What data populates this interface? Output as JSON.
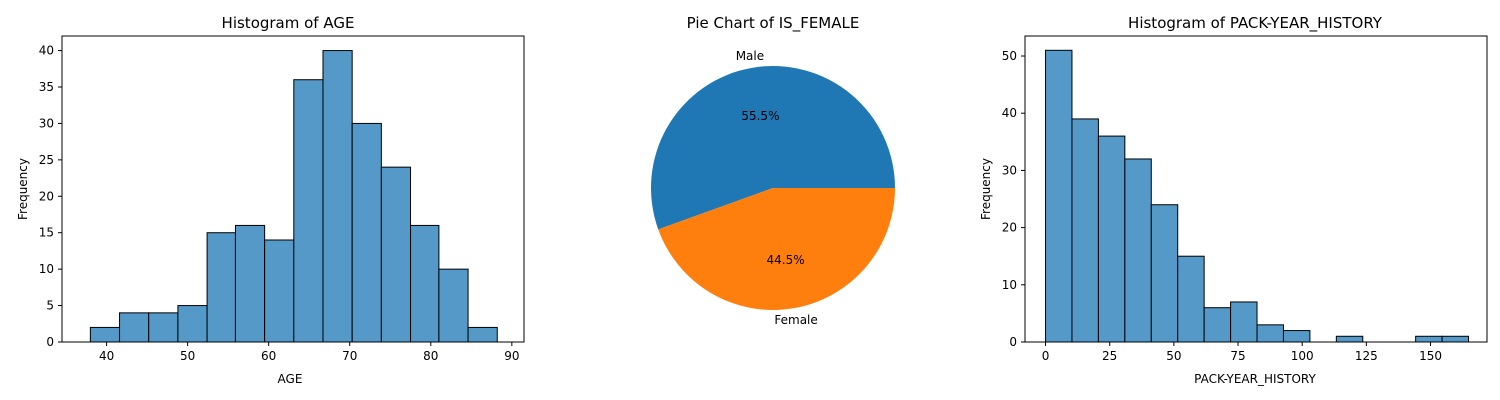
{
  "chart_data": [
    {
      "type": "bar",
      "title": "Histogram of AGE",
      "xlabel": "AGE",
      "ylabel": "Frequency",
      "bin_edges": [
        38.0,
        41.6,
        45.2,
        48.8,
        52.4,
        55.9,
        59.5,
        63.1,
        66.7,
        70.3,
        73.9,
        77.5,
        81.0,
        84.6,
        88.2
      ],
      "values": [
        2,
        4,
        4,
        5,
        15,
        16,
        14,
        36,
        40,
        30,
        24,
        16,
        10,
        2
      ],
      "xlim": [
        34.5,
        91.5
      ],
      "ylim": [
        0,
        42
      ],
      "xticks": [
        40,
        50,
        60,
        70,
        80,
        90
      ],
      "yticks": [
        0,
        5,
        10,
        15,
        20,
        25,
        30,
        35,
        40
      ],
      "color": "#5499c7"
    },
    {
      "type": "pie",
      "title": "Pie Chart of IS_FEMALE",
      "categories": [
        "Male",
        "Female"
      ],
      "values": [
        55.5,
        44.5
      ],
      "labels": [
        "55.5%",
        "44.5%"
      ],
      "colors": [
        "#1f77b4",
        "#ff7f0e"
      ]
    },
    {
      "type": "bar",
      "title": "Histogram of PACK-YEAR_HISTORY",
      "xlabel": "PACK-YEAR_HISTORY",
      "ylabel": "Frequency",
      "bin_edges": [
        0,
        10.3,
        20.6,
        30.9,
        41.2,
        51.5,
        61.8,
        72.1,
        82.4,
        92.7,
        103.0,
        113.3,
        123.6,
        133.9,
        144.2,
        154.5,
        164.8
      ],
      "values": [
        51,
        39,
        36,
        32,
        24,
        15,
        6,
        7,
        3,
        2,
        0,
        1,
        0,
        0,
        1,
        1
      ],
      "xlim": [
        -8,
        172
      ],
      "ylim": [
        0,
        53.5
      ],
      "xticks": [
        0,
        25,
        50,
        75,
        100,
        125,
        150
      ],
      "yticks": [
        0,
        10,
        20,
        30,
        40,
        50
      ],
      "color": "#5499c7"
    }
  ]
}
